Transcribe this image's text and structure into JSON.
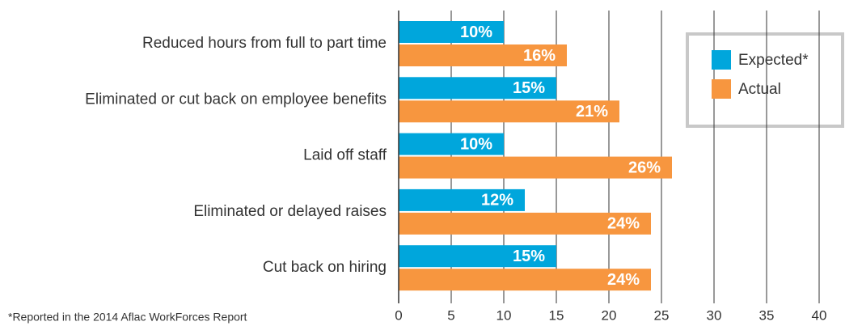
{
  "chart_data": {
    "type": "hbar",
    "categories": [
      "Reduced hours from full to part time",
      "Eliminated or cut back on employee benefits",
      "Laid off staff",
      "Eliminated or delayed raises",
      "Cut back on hiring"
    ],
    "series": [
      {
        "name": "Expected*",
        "color": "#00a6dc",
        "values": [
          10,
          15,
          10,
          12,
          15
        ],
        "value_labels": [
          "10%",
          "15%",
          "10%",
          "12%",
          "15%"
        ]
      },
      {
        "name": "Actual",
        "color": "#f7963f",
        "values": [
          16,
          21,
          26,
          24,
          24
        ],
        "value_labels": [
          "16%",
          "21%",
          "26%",
          "24%",
          "24%"
        ]
      }
    ],
    "xlim": [
      0,
      40
    ],
    "xticks": [
      0,
      5,
      10,
      15,
      20,
      25,
      30,
      35,
      40
    ],
    "grid": true,
    "legend": "upper right",
    "footnote": "*Reported in the 2014 Aflac WorkForces Report"
  }
}
